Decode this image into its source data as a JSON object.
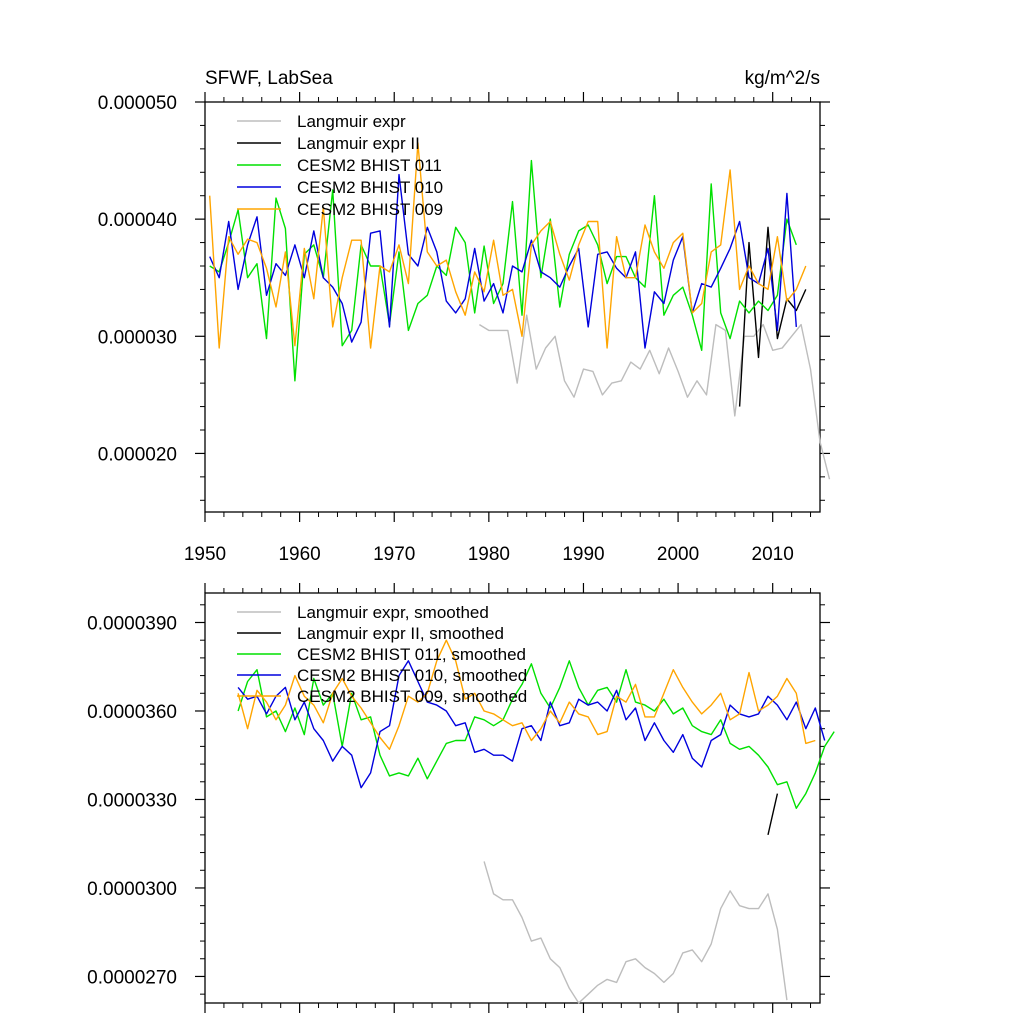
{
  "chart_data": [
    {
      "type": "line",
      "title": "SFWF, LabSea",
      "units": "kg/m^2/s",
      "xlim": [
        1950,
        2015
      ],
      "ylim": [
        1.5e-05,
        5e-05
      ],
      "xticks": [
        1950,
        1960,
        1970,
        1980,
        1990,
        2000,
        2010
      ],
      "xtick_labels": [
        "1950",
        "1960",
        "1970",
        "1980",
        "1990",
        "2000",
        "2010"
      ],
      "yticks": [
        2e-05,
        3e-05,
        4e-05,
        5e-05
      ],
      "ytick_labels": [
        "0.000020",
        "0.000030",
        "0.000040",
        "0.000050"
      ],
      "series": [
        {
          "name": "Langmuir expr",
          "color": "#bdbdbd",
          "x0": 1979,
          "values": [
            3.1e-05,
            3.05e-05,
            3.05e-05,
            3.05e-05,
            2.6e-05,
            3.18e-05,
            2.72e-05,
            2.9e-05,
            3e-05,
            2.62e-05,
            2.48e-05,
            2.72e-05,
            2.7e-05,
            2.5e-05,
            2.6e-05,
            2.62e-05,
            2.78e-05,
            2.72e-05,
            2.88e-05,
            2.68e-05,
            2.9e-05,
            2.7e-05,
            2.48e-05,
            2.62e-05,
            2.5e-05,
            3.1e-05,
            3.05e-05,
            2.32e-05,
            3e-05,
            3e-05,
            3.1e-05,
            2.88e-05,
            2.9e-05,
            3e-05,
            3.1e-05,
            2.72e-05,
            2.1e-05,
            1.78e-05
          ]
        },
        {
          "name": "Langmuir expr II",
          "color": "#000000",
          "x0": 2006.5,
          "values": [
            2.4e-05,
            3.8e-05,
            2.82e-05,
            3.93e-05,
            2.98e-05,
            3.32e-05,
            3.22e-05,
            3.4e-05
          ]
        },
        {
          "name": "CESM2 BHIST 011",
          "color": "#00e000",
          "x0": 1950.5,
          "values": [
            3.6e-05,
            3.55e-05,
            3.8e-05,
            4.08e-05,
            3.5e-05,
            3.62e-05,
            2.98e-05,
            4.18e-05,
            3.92e-05,
            2.62e-05,
            3.7e-05,
            3.78e-05,
            3.5e-05,
            4.25e-05,
            2.92e-05,
            3.05e-05,
            3.78e-05,
            3.6e-05,
            3.6e-05,
            3.1e-05,
            3.72e-05,
            3.05e-05,
            3.28e-05,
            3.35e-05,
            3.6e-05,
            3.52e-05,
            3.93e-05,
            3.8e-05,
            3.2e-05,
            3.77e-05,
            3.28e-05,
            3.45e-05,
            4.15e-05,
            3.18e-05,
            4.5e-05,
            3.5e-05,
            4e-05,
            3.25e-05,
            3.7e-05,
            3.9e-05,
            3.95e-05,
            3.78e-05,
            3.45e-05,
            3.68e-05,
            3.68e-05,
            3.5e-05,
            3.42e-05,
            4.2e-05,
            3.18e-05,
            3.35e-05,
            3.42e-05,
            3.18e-05,
            2.88e-05,
            4.3e-05,
            3.2e-05,
            2.98e-05,
            3.3e-05,
            3.2e-05,
            3.3e-05,
            3.22e-05,
            3.35e-05,
            4e-05,
            3.78e-05
          ]
        },
        {
          "name": "CESM2 BHIST 010",
          "color": "#0000dd",
          "x0": 1950.5,
          "values": [
            3.68e-05,
            3.5e-05,
            3.98e-05,
            3.4e-05,
            3.78e-05,
            4.02e-05,
            3.35e-05,
            3.62e-05,
            3.52e-05,
            3.78e-05,
            3.5e-05,
            3.9e-05,
            3.5e-05,
            3.42e-05,
            3.28e-05,
            2.95e-05,
            3.12e-05,
            3.88e-05,
            3.9e-05,
            3.08e-05,
            4.38e-05,
            3.7e-05,
            3.6e-05,
            3.93e-05,
            3.72e-05,
            3.3e-05,
            3.2e-05,
            3.32e-05,
            3.75e-05,
            3.3e-05,
            3.45e-05,
            3.2e-05,
            3.6e-05,
            3.55e-05,
            3.82e-05,
            3.55e-05,
            3.5e-05,
            3.42e-05,
            3.6e-05,
            3.75e-05,
            3.08e-05,
            3.7e-05,
            3.72e-05,
            3.58e-05,
            3.5e-05,
            3.72e-05,
            2.9e-05,
            3.38e-05,
            3.28e-05,
            3.65e-05,
            3.85e-05,
            3.2e-05,
            3.45e-05,
            3.42e-05,
            3.58e-05,
            3.75e-05,
            3.98e-05,
            3.5e-05,
            3.45e-05,
            3.75e-05,
            3.05e-05,
            4.22e-05,
            3.08e-05
          ]
        },
        {
          "name": "CESM2 BHIST 009",
          "color": "#ffa500",
          "x0": 1950.5,
          "values": [
            4.2e-05,
            2.9e-05,
            3.85e-05,
            3.7e-05,
            3.83e-05,
            3.8e-05,
            3.58e-05,
            3.25e-05,
            3.72e-05,
            2.92e-05,
            3.75e-05,
            3.32e-05,
            4.1e-05,
            3.08e-05,
            3.5e-05,
            3.82e-05,
            3.82e-05,
            2.9e-05,
            3.6e-05,
            3.55e-05,
            3.78e-05,
            3.45e-05,
            4.65e-05,
            3.72e-05,
            3.6e-05,
            3.65e-05,
            3.38e-05,
            3.18e-05,
            3.55e-05,
            3.38e-05,
            3.82e-05,
            3.35e-05,
            3.4e-05,
            3e-05,
            3.78e-05,
            3.9e-05,
            3.98e-05,
            3.7e-05,
            3.48e-05,
            3.78e-05,
            3.98e-05,
            3.98e-05,
            2.9e-05,
            3.85e-05,
            3.5e-05,
            3.5e-05,
            3.95e-05,
            3.72e-05,
            3.58e-05,
            3.8e-05,
            3.88e-05,
            3.2e-05,
            3.28e-05,
            3.72e-05,
            3.78e-05,
            4.42e-05,
            3.4e-05,
            3.6e-05,
            3.45e-05,
            3.4e-05,
            3.85e-05,
            3.3e-05,
            3.4e-05,
            3.6e-05
          ]
        }
      ],
      "legend": [
        "Langmuir expr",
        "Langmuir expr II",
        "CESM2 BHIST 011",
        "CESM2 BHIST 010",
        "CESM2 BHIST 009"
      ],
      "legend_position": "top-left"
    },
    {
      "type": "line",
      "title": "",
      "xlim": [
        1950,
        2015
      ],
      "ylim": [
        2.61e-05,
        4e-05
      ],
      "xticks": [
        1950,
        1960,
        1970,
        1980,
        1990,
        2000,
        2010
      ],
      "yticks": [
        2.7e-05,
        3e-05,
        3.3e-05,
        3.6e-05,
        3.9e-05
      ],
      "ytick_labels": [
        "0.0000270",
        "0.0000300",
        "0.0000330",
        "0.0000360",
        "0.0000390"
      ],
      "series": [
        {
          "name": "Langmuir expr, smoothed",
          "color": "#bdbdbd",
          "x0": 1979.5,
          "values": [
            3.09e-05,
            2.98e-05,
            2.96e-05,
            2.96e-05,
            2.9e-05,
            2.82e-05,
            2.83e-05,
            2.76e-05,
            2.73e-05,
            2.66e-05,
            2.61e-05,
            2.64e-05,
            2.67e-05,
            2.69e-05,
            2.68e-05,
            2.75e-05,
            2.76e-05,
            2.73e-05,
            2.71e-05,
            2.68e-05,
            2.71e-05,
            2.78e-05,
            2.79e-05,
            2.75e-05,
            2.81e-05,
            2.93e-05,
            2.99e-05,
            2.94e-05,
            2.93e-05,
            2.93e-05,
            2.98e-05,
            2.86e-05,
            2.62e-05
          ]
        },
        {
          "name": "Langmuir expr II, smoothed",
          "color": "#000000",
          "x0": 2009.5,
          "values": [
            3.18e-05,
            3.32e-05
          ]
        },
        {
          "name": "CESM2 BHIST 011, smoothed",
          "color": "#00e000",
          "x0": 1953.5,
          "values": [
            3.6e-05,
            3.7e-05,
            3.74e-05,
            3.58e-05,
            3.6e-05,
            3.53e-05,
            3.61e-05,
            3.52e-05,
            3.71e-05,
            3.62e-05,
            3.66e-05,
            3.48e-05,
            3.66e-05,
            3.57e-05,
            3.58e-05,
            3.45e-05,
            3.38e-05,
            3.39e-05,
            3.38e-05,
            3.44e-05,
            3.37e-05,
            3.43e-05,
            3.49e-05,
            3.5e-05,
            3.5e-05,
            3.58e-05,
            3.57e-05,
            3.55e-05,
            3.57e-05,
            3.64e-05,
            3.69e-05,
            3.76e-05,
            3.66e-05,
            3.61e-05,
            3.68e-05,
            3.77e-05,
            3.68e-05,
            3.62e-05,
            3.67e-05,
            3.68e-05,
            3.63e-05,
            3.74e-05,
            3.63e-05,
            3.62e-05,
            3.6e-05,
            3.64e-05,
            3.59e-05,
            3.61e-05,
            3.55e-05,
            3.53e-05,
            3.52e-05,
            3.57e-05,
            3.49e-05,
            3.47e-05,
            3.48e-05,
            3.45e-05,
            3.41e-05,
            3.35e-05,
            3.36e-05,
            3.27e-05,
            3.32e-05,
            3.39e-05,
            3.48e-05,
            3.53e-05
          ]
        },
        {
          "name": "CESM2 BHIST 010, smoothed",
          "color": "#0000dd",
          "x0": 1953.5,
          "values": [
            3.68e-05,
            3.64e-05,
            3.65e-05,
            3.59e-05,
            3.65e-05,
            3.68e-05,
            3.57e-05,
            3.63e-05,
            3.54e-05,
            3.5e-05,
            3.43e-05,
            3.48e-05,
            3.45e-05,
            3.34e-05,
            3.39e-05,
            3.53e-05,
            3.55e-05,
            3.72e-05,
            3.77e-05,
            3.7e-05,
            3.63e-05,
            3.62e-05,
            3.6e-05,
            3.55e-05,
            3.56e-05,
            3.46e-05,
            3.47e-05,
            3.45e-05,
            3.45e-05,
            3.43e-05,
            3.54e-05,
            3.55e-05,
            3.5e-05,
            3.63e-05,
            3.55e-05,
            3.56e-05,
            3.64e-05,
            3.62e-05,
            3.63e-05,
            3.6e-05,
            3.67e-05,
            3.57e-05,
            3.61e-05,
            3.5e-05,
            3.56e-05,
            3.5e-05,
            3.46e-05,
            3.52e-05,
            3.44e-05,
            3.41e-05,
            3.5e-05,
            3.52e-05,
            3.62e-05,
            3.59e-05,
            3.58e-05,
            3.59e-05,
            3.65e-05,
            3.62e-05,
            3.57e-05,
            3.63e-05,
            3.54e-05,
            3.61e-05,
            3.5e-05
          ]
        },
        {
          "name": "CESM2 BHIST 009, smoothed",
          "color": "#ffa500",
          "x0": 1953.5,
          "values": [
            3.66e-05,
            3.54e-05,
            3.67e-05,
            3.63e-05,
            3.57e-05,
            3.62e-05,
            3.72e-05,
            3.65e-05,
            3.62e-05,
            3.56e-05,
            3.66e-05,
            3.71e-05,
            3.65e-05,
            3.61e-05,
            3.56e-05,
            3.51e-05,
            3.47e-05,
            3.55e-05,
            3.65e-05,
            3.63e-05,
            3.66e-05,
            3.77e-05,
            3.84e-05,
            3.77e-05,
            3.64e-05,
            3.66e-05,
            3.6e-05,
            3.59e-05,
            3.57e-05,
            3.55e-05,
            3.56e-05,
            3.5e-05,
            3.54e-05,
            3.6e-05,
            3.56e-05,
            3.63e-05,
            3.59e-05,
            3.58e-05,
            3.52e-05,
            3.53e-05,
            3.65e-05,
            3.63e-05,
            3.69e-05,
            3.58e-05,
            3.58e-05,
            3.66e-05,
            3.74e-05,
            3.68e-05,
            3.63e-05,
            3.59e-05,
            3.62e-05,
            3.66e-05,
            3.57e-05,
            3.59e-05,
            3.73e-05,
            3.6e-05,
            3.62e-05,
            3.65e-05,
            3.71e-05,
            3.66e-05,
            3.49e-05,
            3.5e-05
          ]
        }
      ],
      "legend": [
        "Langmuir expr, smoothed",
        "Langmuir expr II, smoothed",
        "CESM2 BHIST 011, smoothed",
        "CESM2 BHIST 010, smoothed",
        "CESM2 BHIST 009, smoothed"
      ],
      "legend_position": "top-left"
    }
  ]
}
